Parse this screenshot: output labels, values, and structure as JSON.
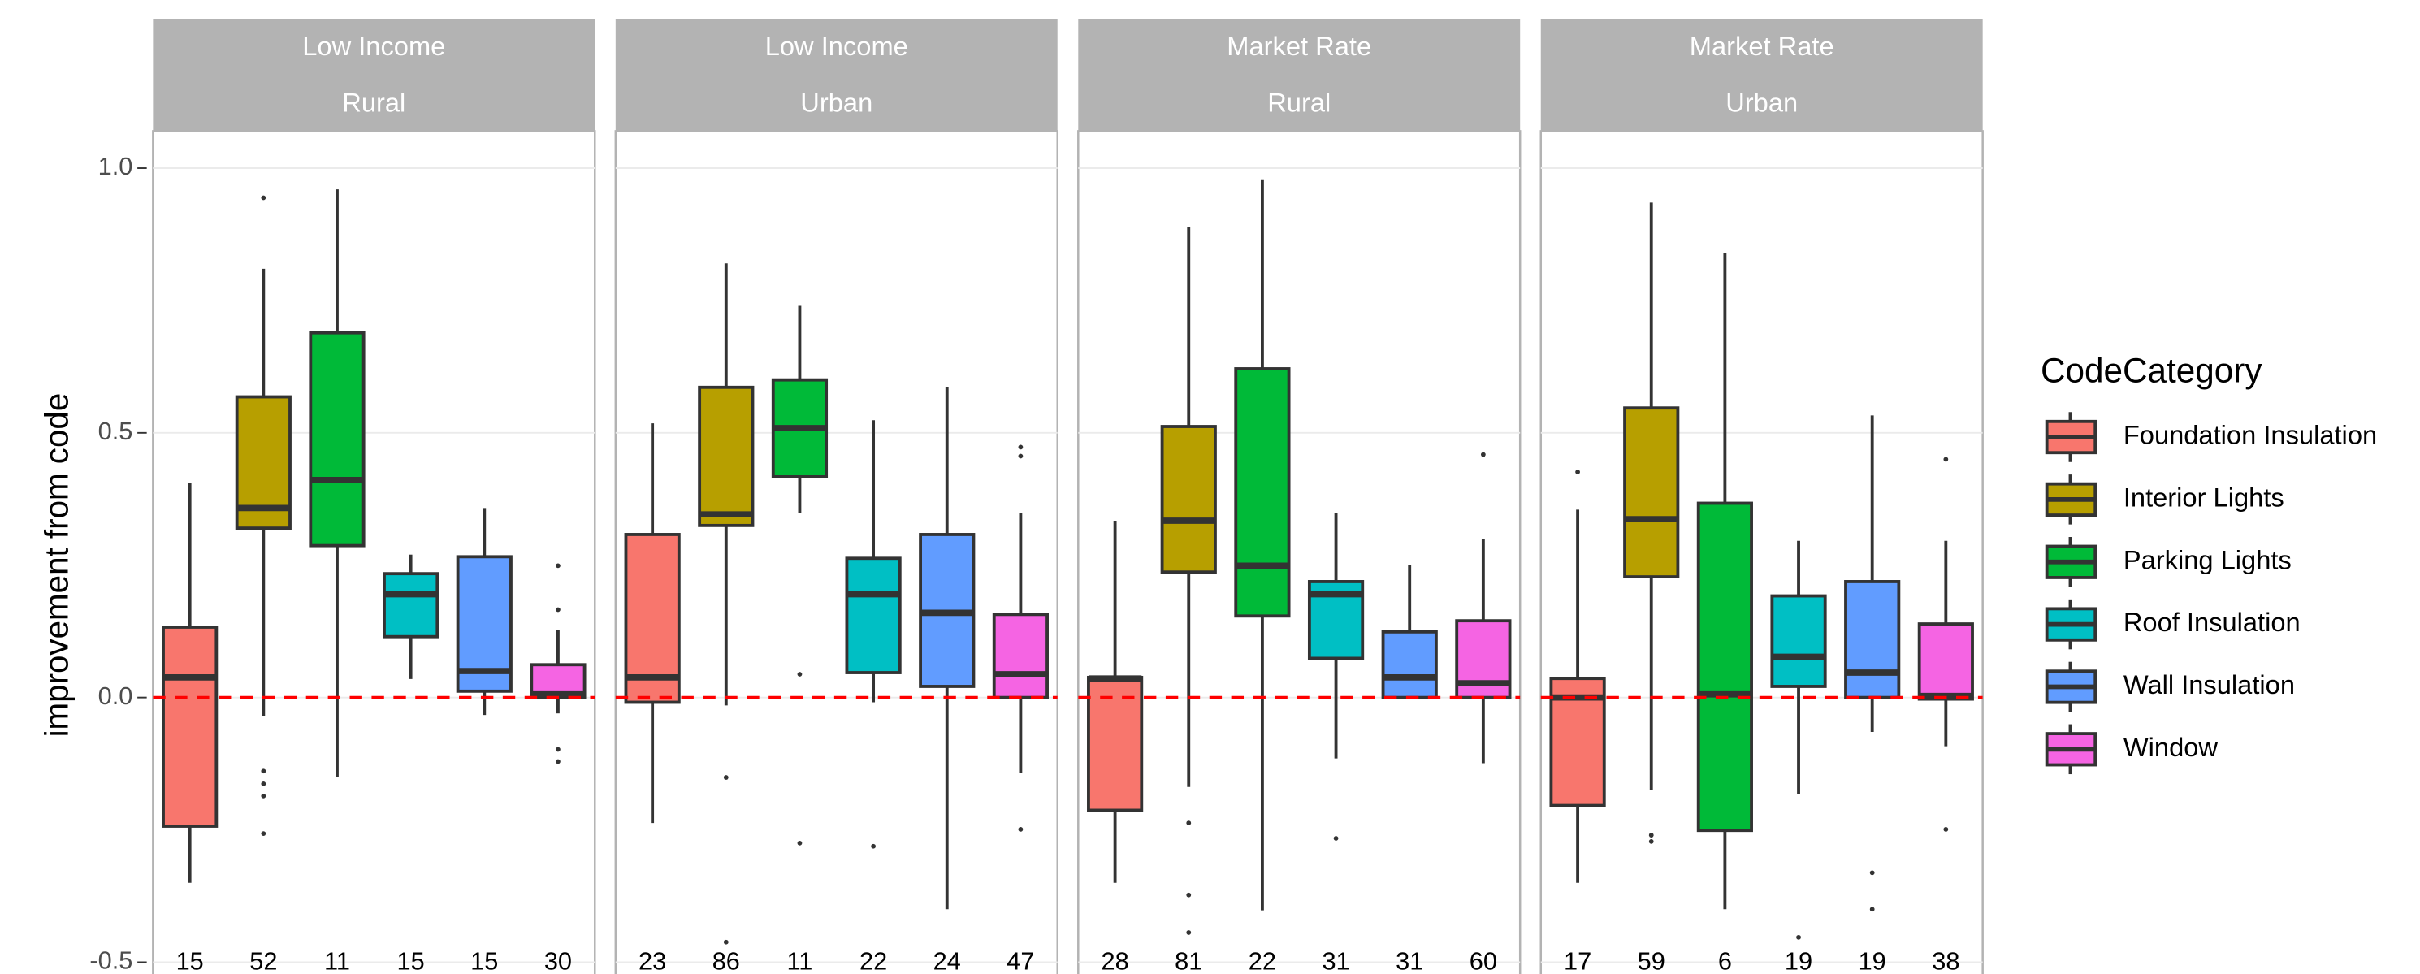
{
  "chart_data": {
    "type": "boxplot",
    "y_label": "improvement from code",
    "legend_title": "CodeCategory",
    "categories": [
      "Foundation Insulation",
      "Interior Lights",
      "Parking Lights",
      "Roof Insulation",
      "Wall Insulation",
      "Window"
    ],
    "colors": [
      "#F8766D",
      "#B79F00",
      "#00BA38",
      "#00BFC4",
      "#619CFF",
      "#F564E3"
    ],
    "ylim": [
      -0.54,
      1.07
    ],
    "yticks": [
      {
        "value": -0.5,
        "label": "-0.5"
      },
      {
        "value": 0,
        "label": "0.0"
      },
      {
        "value": 0.5,
        "label": "0.5"
      },
      {
        "value": 1,
        "label": "1.0"
      }
    ],
    "grid": true,
    "hline": 0,
    "hline_color": "#ff0000",
    "facets": [
      {
        "strip": [
          "Low Income",
          "Rural"
        ],
        "boxes": [
          {
            "whislo": -0.35,
            "q1": -0.243,
            "med": 0.038,
            "q3": 0.133,
            "whishi": 0.405,
            "fliers": [],
            "n": 15
          },
          {
            "whislo": -0.035,
            "q1": 0.32,
            "med": 0.358,
            "q3": 0.568,
            "whishi": 0.81,
            "fliers": [
              0.944,
              -0.139,
              -0.163,
              -0.186,
              -0.257
            ],
            "n": 52
          },
          {
            "whislo": -0.151,
            "q1": 0.287,
            "med": 0.411,
            "q3": 0.689,
            "whishi": 0.96,
            "fliers": [],
            "n": 11
          },
          {
            "whislo": 0.035,
            "q1": 0.115,
            "med": 0.195,
            "q3": 0.234,
            "whishi": 0.27,
            "fliers": [],
            "n": 15
          },
          {
            "whislo": -0.033,
            "q1": 0.012,
            "med": 0.05,
            "q3": 0.266,
            "whishi": 0.358,
            "fliers": [],
            "n": 15
          },
          {
            "whislo": -0.03,
            "q1": 0,
            "med": 0.006,
            "q3": 0.062,
            "whishi": 0.127,
            "fliers": [
              0.249,
              0.166,
              -0.098,
              -0.121
            ],
            "n": 30
          }
        ]
      },
      {
        "strip": [
          "Low Income",
          "Urban"
        ],
        "boxes": [
          {
            "whislo": -0.237,
            "q1": -0.009,
            "med": 0.038,
            "q3": 0.308,
            "whishi": 0.518,
            "fliers": [],
            "n": 23
          },
          {
            "whislo": -0.015,
            "q1": 0.325,
            "med": 0.346,
            "q3": 0.586,
            "whishi": 0.82,
            "fliers": [
              -0.151,
              -0.462
            ],
            "n": 86
          },
          {
            "whislo": 0.349,
            "q1": 0.417,
            "med": 0.509,
            "q3": 0.6,
            "whishi": 0.74,
            "fliers": [
              0.044,
              -0.275
            ],
            "n": 11
          },
          {
            "whislo": -0.009,
            "q1": 0.047,
            "med": 0.195,
            "q3": 0.263,
            "whishi": 0.524,
            "fliers": [
              -0.281
            ],
            "n": 22
          },
          {
            "whislo": -0.4,
            "q1": 0.021,
            "med": 0.16,
            "q3": 0.308,
            "whishi": 0.586,
            "fliers": [],
            "n": 24
          },
          {
            "whislo": -0.142,
            "q1": 0,
            "med": 0.044,
            "q3": 0.157,
            "whishi": 0.349,
            "fliers": [
              0.473,
              0.456,
              -0.249
            ],
            "n": 47
          }
        ]
      },
      {
        "strip": [
          "Market Rate",
          "Rural"
        ],
        "boxes": [
          {
            "whislo": -0.35,
            "q1": -0.213,
            "med": 0.036,
            "q3": 0.038,
            "whishi": 0.334,
            "fliers": [],
            "n": 28
          },
          {
            "whislo": -0.169,
            "q1": 0.237,
            "med": 0.334,
            "q3": 0.512,
            "whishi": 0.888,
            "fliers": [
              -0.237,
              -0.373,
              -0.444
            ],
            "n": 81
          },
          {
            "whislo": -0.402,
            "q1": 0.154,
            "med": 0.249,
            "q3": 0.621,
            "whishi": 0.979,
            "fliers": [],
            "n": 22
          },
          {
            "whislo": -0.115,
            "q1": 0.074,
            "med": 0.195,
            "q3": 0.219,
            "whishi": 0.349,
            "fliers": [
              -0.266
            ],
            "n": 31
          },
          {
            "whislo": 0,
            "q1": 0,
            "med": 0.038,
            "q3": 0.124,
            "whishi": 0.251,
            "fliers": [],
            "n": 31
          },
          {
            "whislo": -0.124,
            "q1": 0,
            "med": 0.027,
            "q3": 0.145,
            "whishi": 0.299,
            "fliers": [
              0.459
            ],
            "n": 60
          }
        ]
      },
      {
        "strip": [
          "Market Rate",
          "Urban"
        ],
        "boxes": [
          {
            "whislo": -0.35,
            "q1": -0.204,
            "med": 0,
            "q3": 0.036,
            "whishi": 0.355,
            "fliers": [
              0.426
            ],
            "n": 17
          },
          {
            "whislo": -0.175,
            "q1": 0.228,
            "med": 0.337,
            "q3": 0.547,
            "whishi": 0.935,
            "fliers": [
              -0.26,
              -0.272
            ],
            "n": 59
          },
          {
            "whislo": -0.4,
            "q1": -0.251,
            "med": 0.006,
            "q3": 0.367,
            "whishi": 0.84,
            "fliers": [],
            "n": 6
          },
          {
            "whislo": -0.183,
            "q1": 0.021,
            "med": 0.077,
            "q3": 0.192,
            "whishi": 0.296,
            "fliers": [
              -0.453
            ],
            "n": 19
          },
          {
            "whislo": -0.065,
            "q1": 0,
            "med": 0.047,
            "q3": 0.219,
            "whishi": 0.533,
            "fliers": [
              -0.331,
              -0.4
            ],
            "n": 19
          },
          {
            "whislo": -0.092,
            "q1": -0.003,
            "med": 0.003,
            "q3": 0.139,
            "whishi": 0.296,
            "fliers": [
              0.45,
              -0.249
            ],
            "n": 38
          }
        ]
      }
    ]
  }
}
